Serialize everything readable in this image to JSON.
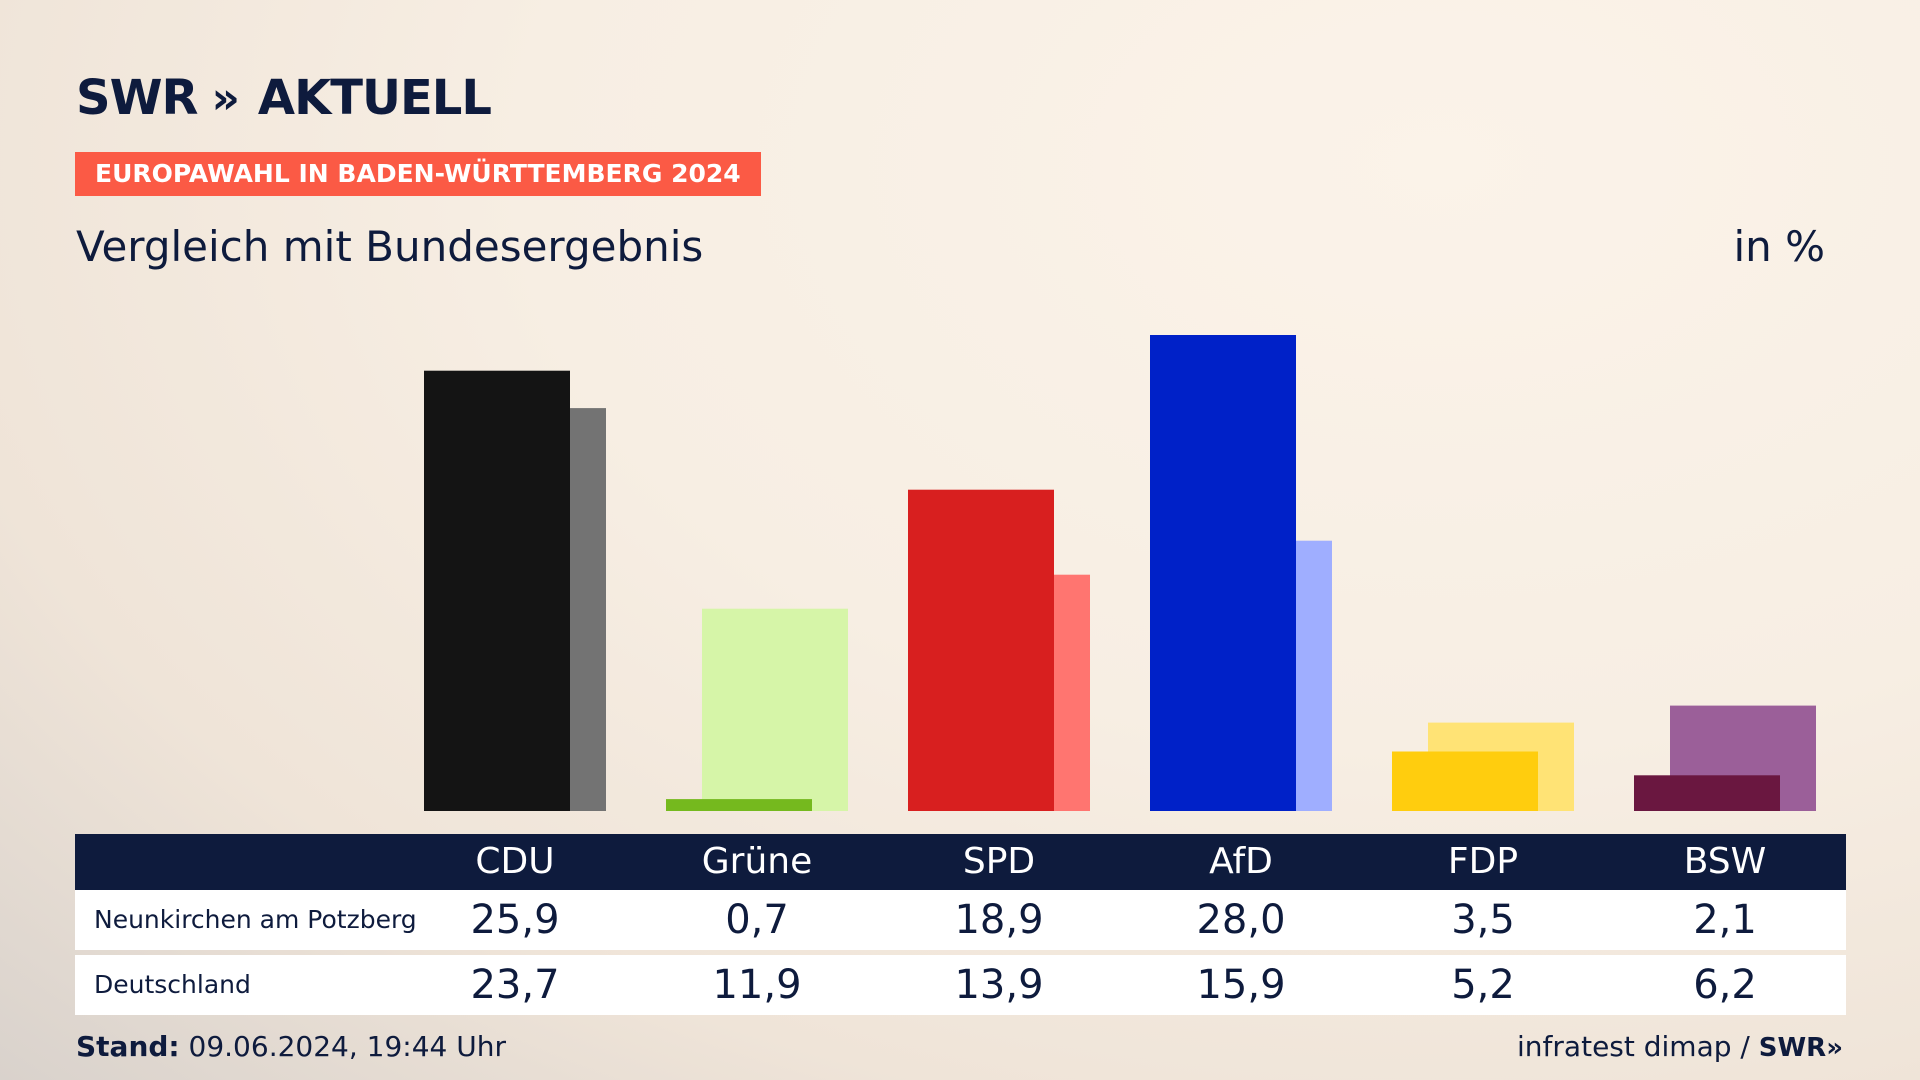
{
  "brand": {
    "logo_text": "SWR",
    "logo_chevrons": "»",
    "logo_suffix": "AKTUELL"
  },
  "header": {
    "tag": "EUROPAWAHL IN BADEN-WÜRTTEMBERG 2024",
    "subtitle": "Vergleich mit Bundesergebnis",
    "unit": "in %"
  },
  "colors": {
    "navy": "#0e1b3d",
    "tag_bg": "#fb5a45"
  },
  "chart_data": {
    "type": "bar",
    "categories": [
      "CDU",
      "Grüne",
      "SPD",
      "AfD",
      "FDP",
      "BSW"
    ],
    "series": [
      {
        "name": "Neunkirchen am Potzberg",
        "values": [
          25.9,
          0.7,
          18.9,
          28.0,
          3.5,
          2.1
        ]
      },
      {
        "name": "Deutschland",
        "values": [
          23.7,
          11.9,
          13.9,
          15.9,
          5.2,
          6.2
        ]
      }
    ],
    "primary_colors": [
      "#141414",
      "#75b91e",
      "#d81f1f",
      "#0021c8",
      "#ffcd0e",
      "#6a1740"
    ],
    "secondary_colors": [
      "#737373",
      "#d6f5a8",
      "#ff7570",
      "#9faeff",
      "#ffe375",
      "#9b5f99"
    ],
    "ylim": [
      0,
      28
    ],
    "grid": false
  },
  "table": {
    "headers": [
      "CDU",
      "Grüne",
      "SPD",
      "AfD",
      "FDP",
      "BSW"
    ],
    "rows": [
      {
        "label": "Neunkirchen am Potzberg",
        "values": [
          "25,9",
          "0,7",
          "18,9",
          "28,0",
          "3,5",
          "2,1"
        ]
      },
      {
        "label": "Deutschland",
        "values": [
          "23,7",
          "11,9",
          "13,9",
          "15,9",
          "5,2",
          "6,2"
        ]
      }
    ]
  },
  "footer": {
    "stand_label": "Stand:",
    "stand_value": "09.06.2024, 19:44 Uhr",
    "source": "infratest dimap /",
    "source_logo": "SWR»"
  }
}
